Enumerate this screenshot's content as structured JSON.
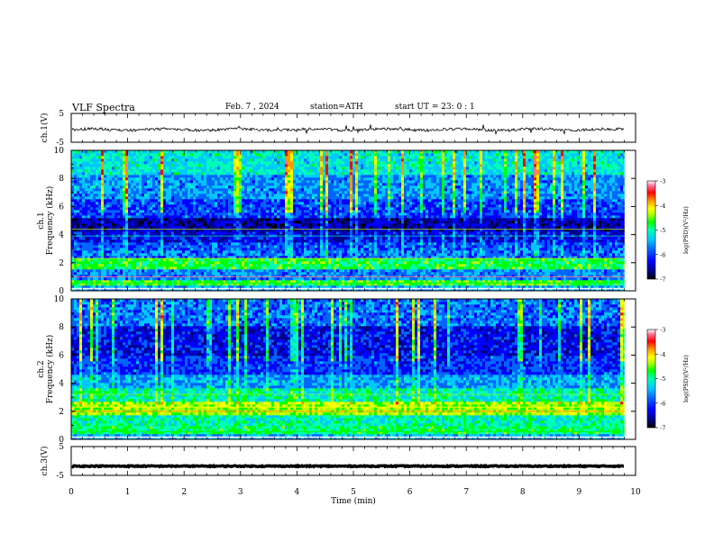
{
  "header": {
    "title": "VLF Spectra",
    "date": "Feb. 7 , 2024",
    "station": "station=ATH",
    "start": "start UT = 23: 0 : 1"
  },
  "chart_data": [
    {
      "type": "line",
      "name": "ch1-waveform",
      "ylabel": "ch.1(V)",
      "ylim": [
        -5,
        5
      ],
      "yticks": [
        "5",
        "-5"
      ],
      "xlim": [
        0,
        10
      ],
      "baseline": -0.6,
      "color": "#000000"
    },
    {
      "type": "heatmap",
      "name": "ch1-spectrogram",
      "ylabel": "ch.1 Frequency (kHz)",
      "ylim": [
        0,
        10
      ],
      "yticks": [
        "0",
        "2",
        "4",
        "6",
        "8",
        "10"
      ],
      "xlim": [
        0,
        9.8
      ],
      "colorbar": {
        "label": "log(PSD)(V²/Hz)",
        "range": [
          -7,
          -3
        ],
        "ticks": [
          "-3",
          "-4",
          "-5",
          "-6",
          "-7"
        ]
      }
    },
    {
      "type": "heatmap",
      "name": "ch2-spectrogram",
      "ylabel": "ch.2 Frequency (kHz)",
      "ylim": [
        0,
        10
      ],
      "yticks": [
        "0",
        "2",
        "4",
        "6",
        "8",
        "10"
      ],
      "xlim": [
        0,
        9.8
      ],
      "colorbar": {
        "label": "log(PSD)(V²/Hz)",
        "range": [
          -7,
          -3
        ],
        "ticks": [
          "-3",
          "-4",
          "-5",
          "-6",
          "-7"
        ]
      }
    },
    {
      "type": "line",
      "name": "ch3-waveform",
      "ylabel": "ch.3(V)",
      "ylim": [
        -5,
        5
      ],
      "yticks": [
        "5",
        "-5"
      ],
      "xlim": [
        0,
        10
      ],
      "baseline": -1.8,
      "color": "#000000"
    }
  ],
  "xaxis": {
    "label": "Time (min)",
    "ticks": [
      "0",
      "1",
      "2",
      "3",
      "4",
      "5",
      "6",
      "7",
      "8",
      "9",
      "10"
    ]
  },
  "colors": {
    "colormap": [
      "#000000",
      "#00008c",
      "#0000ff",
      "#0064ff",
      "#00c8ff",
      "#00ffb4",
      "#00ff00",
      "#b4ff00",
      "#ffff00",
      "#ff9600",
      "#ff0000",
      "#ff6e96",
      "#ffffff"
    ]
  }
}
